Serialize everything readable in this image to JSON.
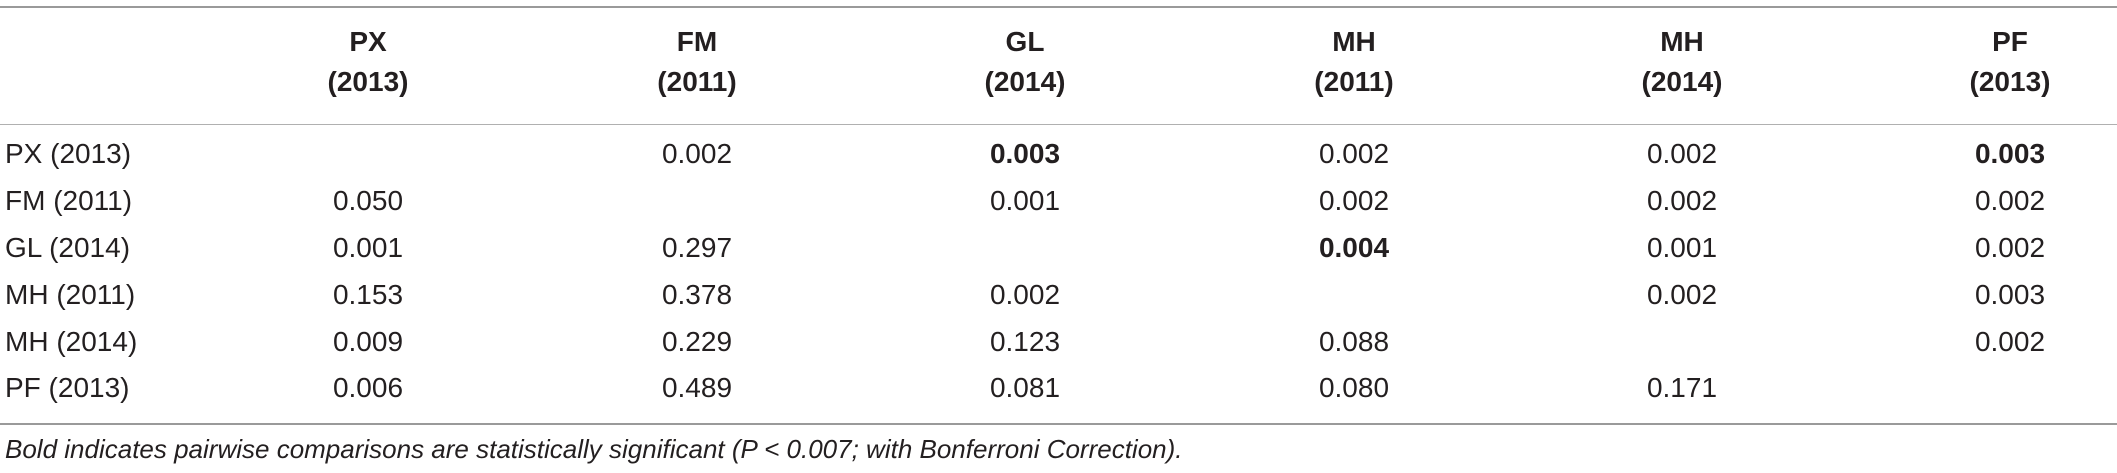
{
  "table": {
    "columns": [
      {
        "name": "PX",
        "year": "(2013)"
      },
      {
        "name": "FM",
        "year": "(2011)"
      },
      {
        "name": "GL",
        "year": "(2014)"
      },
      {
        "name": "MH",
        "year": "(2011)"
      },
      {
        "name": "MH",
        "year": "(2014)"
      },
      {
        "name": "PF",
        "year": "(2013)"
      }
    ],
    "rows": [
      {
        "label": "PX (2013)",
        "cells": [
          {
            "value": "",
            "bold": false
          },
          {
            "value": "0.002",
            "bold": false
          },
          {
            "value": "0.003",
            "bold": true
          },
          {
            "value": "0.002",
            "bold": false
          },
          {
            "value": "0.002",
            "bold": false
          },
          {
            "value": "0.003",
            "bold": true
          }
        ]
      },
      {
        "label": "FM (2011)",
        "cells": [
          {
            "value": "0.050",
            "bold": false
          },
          {
            "value": "",
            "bold": false
          },
          {
            "value": "0.001",
            "bold": false
          },
          {
            "value": "0.002",
            "bold": false
          },
          {
            "value": "0.002",
            "bold": false
          },
          {
            "value": "0.002",
            "bold": false
          }
        ]
      },
      {
        "label": "GL (2014)",
        "cells": [
          {
            "value": "0.001",
            "bold": false
          },
          {
            "value": "0.297",
            "bold": false
          },
          {
            "value": "",
            "bold": false
          },
          {
            "value": "0.004",
            "bold": true
          },
          {
            "value": "0.001",
            "bold": false
          },
          {
            "value": "0.002",
            "bold": false
          }
        ]
      },
      {
        "label": "MH (2011)",
        "cells": [
          {
            "value": "0.153",
            "bold": false
          },
          {
            "value": "0.378",
            "bold": false
          },
          {
            "value": "0.002",
            "bold": false
          },
          {
            "value": "",
            "bold": false
          },
          {
            "value": "0.002",
            "bold": false
          },
          {
            "value": "0.003",
            "bold": false
          }
        ]
      },
      {
        "label": "MH (2014)",
        "cells": [
          {
            "value": "0.009",
            "bold": false
          },
          {
            "value": "0.229",
            "bold": false
          },
          {
            "value": "0.123",
            "bold": false
          },
          {
            "value": "0.088",
            "bold": false
          },
          {
            "value": "",
            "bold": false
          },
          {
            "value": "0.002",
            "bold": false
          }
        ]
      },
      {
        "label": "PF (2013)",
        "cells": [
          {
            "value": "0.006",
            "bold": false
          },
          {
            "value": "0.489",
            "bold": false
          },
          {
            "value": "0.081",
            "bold": false
          },
          {
            "value": "0.080",
            "bold": false
          },
          {
            "value": "0.171",
            "bold": false
          },
          {
            "value": "",
            "bold": false
          }
        ]
      }
    ],
    "footnote": "Bold indicates pairwise comparisons are statistically significant (P < 0.007; with Bonferroni Correction)."
  }
}
